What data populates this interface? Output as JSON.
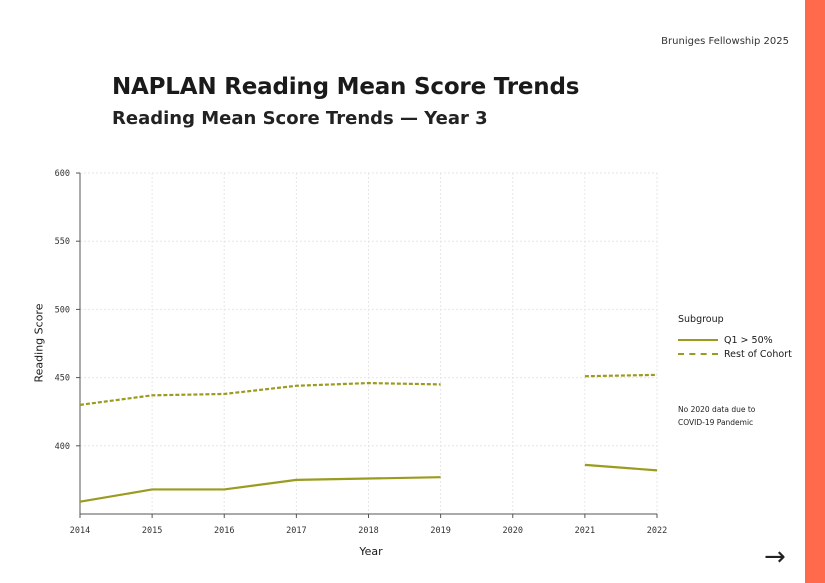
{
  "header": {
    "note": "Bruniges Fellowship 2025"
  },
  "title": "NAPLAN Reading Mean Score Trends",
  "subtitle": "Reading Mean Score Trends — Year 3",
  "colors": {
    "accent_bar": "#ff6a4d",
    "series": "#9a9b1f",
    "grid": "#e6e6e6",
    "axis": "#555555"
  },
  "chart_data": {
    "type": "line",
    "xlabel": "Year",
    "ylabel": "Reading Score",
    "x": [
      2014,
      2015,
      2016,
      2017,
      2018,
      2019,
      2020,
      2021,
      2022
    ],
    "xlim": [
      2014,
      2022
    ],
    "ylim": [
      350,
      600
    ],
    "yticks": [
      400,
      450,
      500,
      550,
      600
    ],
    "grid": true,
    "legend_title": "Subgroup",
    "legend_position": "right",
    "series": [
      {
        "name": "Q1 > 50%",
        "style": "solid",
        "values": [
          359,
          368,
          368,
          375,
          376,
          377,
          null,
          386,
          382
        ]
      },
      {
        "name": "Rest of Cohort",
        "style": "dashed",
        "values": [
          430,
          437,
          438,
          444,
          446,
          445,
          null,
          451,
          452
        ]
      }
    ],
    "annotation": "No 2020 data due to COVID-19 Pandemic"
  },
  "next_icon": "arrow-right-icon"
}
